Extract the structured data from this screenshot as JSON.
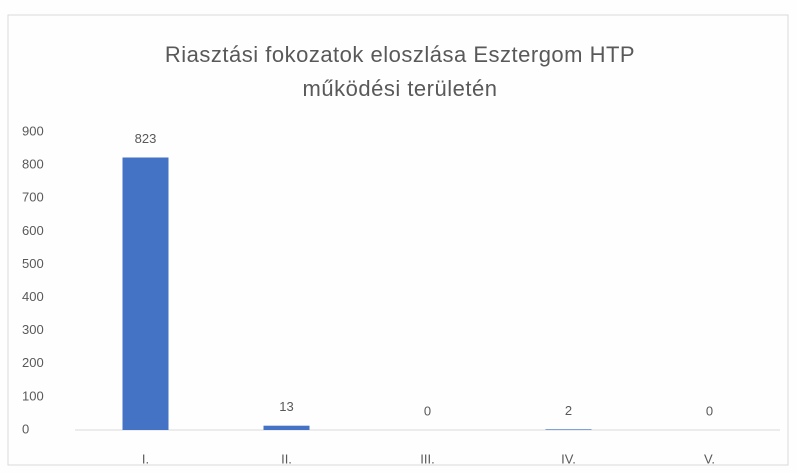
{
  "chart_data": {
    "type": "bar",
    "title": "Riasztási fokozatok eloszlása Esztergom HTP működési területén",
    "categories": [
      "I.",
      "II.",
      "III.",
      "IV.",
      "V."
    ],
    "values": [
      823,
      13,
      0,
      2,
      0
    ],
    "color": "#4472c4",
    "ylim": [
      0,
      900
    ],
    "yticks": [
      0,
      100,
      200,
      300,
      400,
      500,
      600,
      700,
      800,
      900
    ],
    "grid": false
  }
}
